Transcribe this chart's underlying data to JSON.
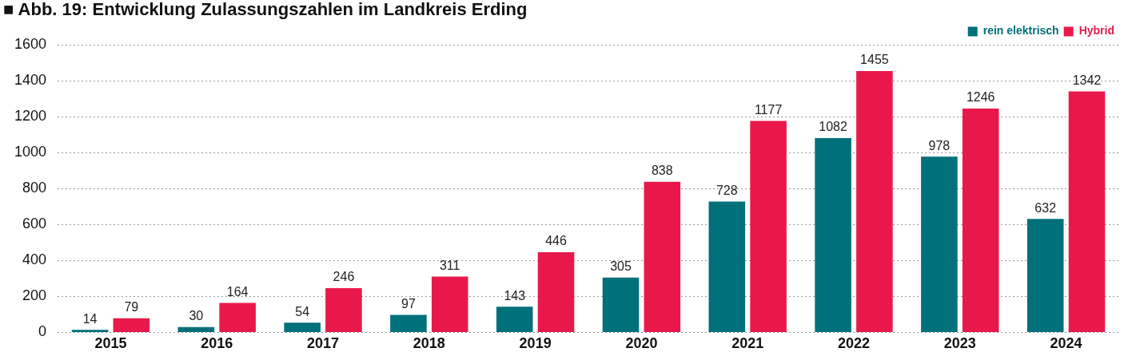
{
  "chart_data": {
    "type": "bar",
    "title": "■ Abb. 19: Entwicklung Zulassungszahlen im Landkreis Erding",
    "categories": [
      "2015",
      "2016",
      "2017",
      "2018",
      "2019",
      "2020",
      "2021",
      "2022",
      "2023",
      "2024"
    ],
    "series": [
      {
        "name": "rein elektrisch",
        "color": "#00707a",
        "values": [
          14,
          30,
          54,
          97,
          143,
          305,
          728,
          1082,
          978,
          632
        ]
      },
      {
        "name": "Hybrid",
        "color": "#e8194a",
        "values": [
          79,
          164,
          246,
          311,
          446,
          838,
          1177,
          1455,
          1246,
          1342
        ]
      }
    ],
    "ylim": [
      0,
      1600
    ],
    "yticks": [
      0,
      200,
      400,
      600,
      800,
      1000,
      1200,
      1400,
      1600
    ],
    "grid": "y",
    "legend": "top right",
    "data_labels": true
  }
}
